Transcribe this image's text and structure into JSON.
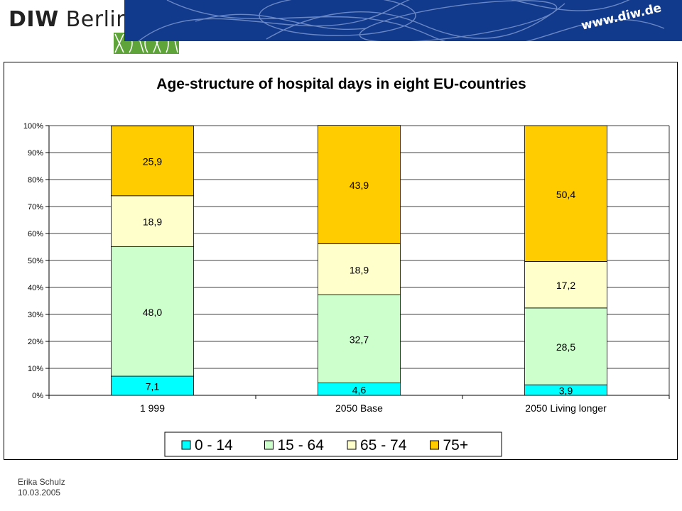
{
  "header": {
    "logo_bold": "DIW",
    "logo_rest": "Berlin",
    "url": "www.diw.de"
  },
  "footer": {
    "author": "Erika Schulz",
    "date": "10.03.2005"
  },
  "colors": {
    "banner": "#123a8c",
    "logo_green": "#5ea43b"
  },
  "chart_data": {
    "type": "bar",
    "stacked": true,
    "percent_stacked": true,
    "title": "Age-structure of hospital days in eight EU-countries",
    "categories": [
      "1 999",
      "2050 Base",
      "2050 Living longer"
    ],
    "ylim": [
      0,
      100
    ],
    "yticks": [
      "0%",
      "10%",
      "20%",
      "30%",
      "40%",
      "50%",
      "60%",
      "70%",
      "80%",
      "90%",
      "100%"
    ],
    "grid": true,
    "legend_position": "bottom",
    "series": [
      {
        "name": "0 - 14",
        "color": "#00ffff",
        "values": [
          7.1,
          4.6,
          3.9
        ],
        "labels": [
          "7,1",
          "4,6",
          "3,9"
        ]
      },
      {
        "name": "15 - 64",
        "color": "#ccffcc",
        "values": [
          48.0,
          32.7,
          28.5
        ],
        "labels": [
          "48,0",
          "32,7",
          "28,5"
        ]
      },
      {
        "name": "65 - 74",
        "color": "#ffffcc",
        "values": [
          18.9,
          18.9,
          17.2
        ],
        "labels": [
          "18,9",
          "18,9",
          "17,2"
        ]
      },
      {
        "name": "75+",
        "color": "#ffcc00",
        "values": [
          25.9,
          43.9,
          50.4
        ],
        "labels": [
          "25,9",
          "43,9",
          "50,4"
        ]
      }
    ]
  }
}
